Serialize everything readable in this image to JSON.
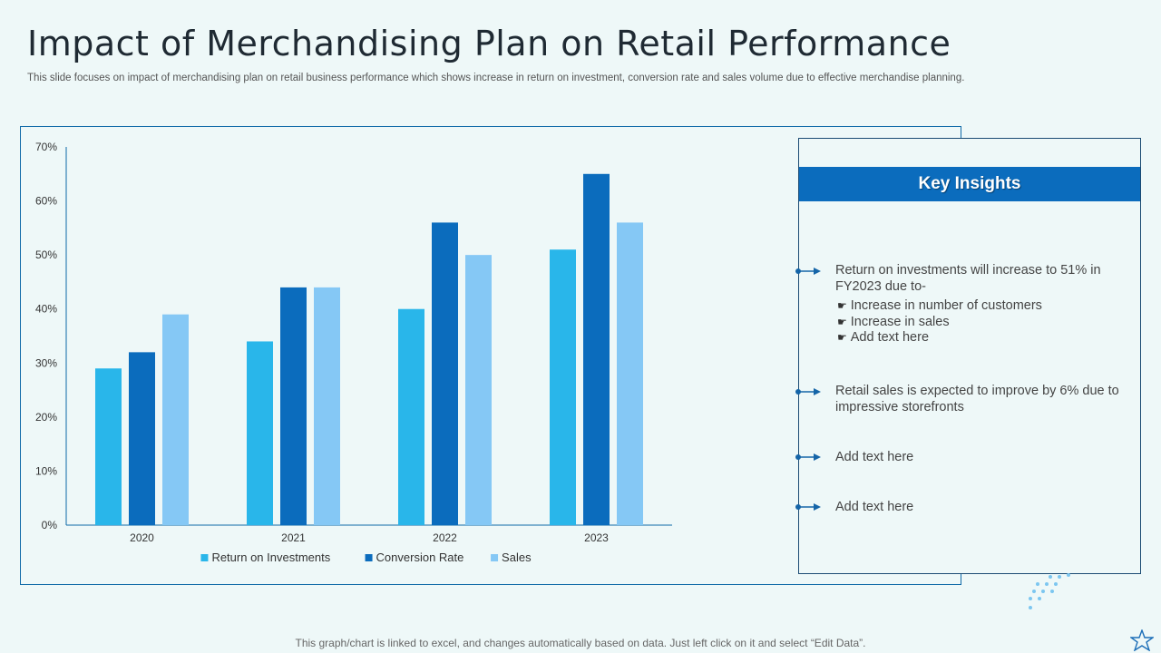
{
  "header": {
    "title": "Impact of Merchandising Plan on Retail Performance",
    "subtitle": "This slide focuses on impact of merchandising plan on retail business performance which shows increase in return on investment, conversion rate and sales volume due to effective merchandise planning."
  },
  "chart_data": {
    "type": "bar",
    "categories": [
      "2020",
      "2021",
      "2022",
      "2023"
    ],
    "series": [
      {
        "name": "Return on Investments",
        "values": [
          29,
          34,
          40,
          51
        ],
        "color": "#29b6ea"
      },
      {
        "name": "Conversion Rate",
        "values": [
          32,
          44,
          56,
          65
        ],
        "color": "#0b6cbd"
      },
      {
        "name": "Sales",
        "values": [
          39,
          44,
          50,
          56
        ],
        "color": "#85c8f5"
      }
    ],
    "yticks": [
      "0%",
      "10%",
      "20%",
      "30%",
      "40%",
      "50%",
      "60%",
      "70%"
    ],
    "ylim": [
      0,
      70
    ],
    "legend_position": "bottom"
  },
  "insights": {
    "header": "Key Insights",
    "item1": {
      "text": "Return on investments will increase to 51% in FY2023 due to-",
      "bullets": [
        "Increase in number of customers",
        "Increase in sales",
        "Add text here"
      ]
    },
    "item2": "Retail sales is expected to improve by 6% due to impressive storefronts",
    "item3": "Add text here",
    "item4": "Add text here"
  },
  "footer": "This graph/chart is linked to excel,  and changes automatically based on data. Just left click on it and select “Edit Data”.",
  "colors": {
    "accent": "#0b6cbd",
    "background": "#eef8f8"
  },
  "icons": {
    "bullet": "arrow-bullet-icon",
    "hand": "pointing-hand-icon",
    "corner": "star-icon"
  }
}
